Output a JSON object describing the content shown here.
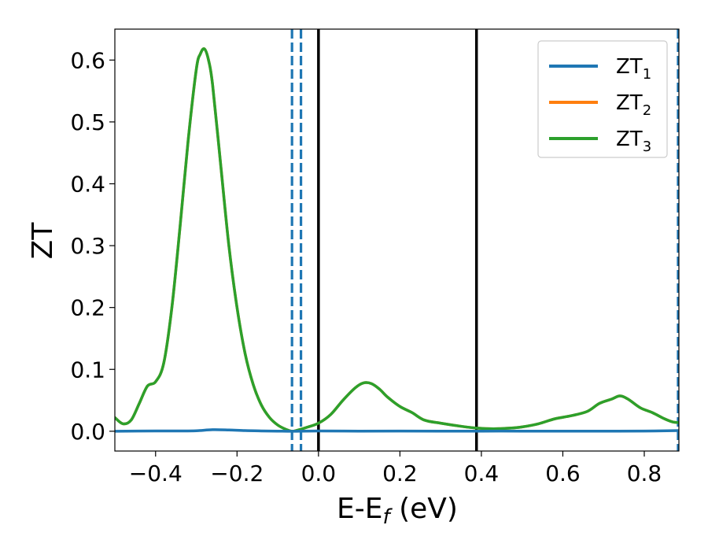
{
  "chart_data": {
    "type": "line",
    "xlabel": "E-E",
    "xlabel_sub": "f",
    "xlabel_unit": "(eV)",
    "ylabel": "ZT",
    "xlim": [
      -0.5,
      0.885
    ],
    "ylim": [
      -0.032,
      0.65
    ],
    "xticks": [
      -0.4,
      -0.2,
      0.0,
      0.2,
      0.4,
      0.6,
      0.8
    ],
    "xtick_labels": [
      "−0.4",
      "−0.2",
      "0.0",
      "0.2",
      "0.4",
      "0.6",
      "0.8"
    ],
    "yticks": [
      0.0,
      0.1,
      0.2,
      0.3,
      0.4,
      0.5,
      0.6
    ],
    "ytick_labels": [
      "0.0",
      "0.1",
      "0.2",
      "0.3",
      "0.4",
      "0.5",
      "0.6"
    ],
    "grid": false,
    "legend_position": "top-right",
    "vlines": [
      {
        "x": -0.065,
        "style": "dashed",
        "color": "#1f77b4"
      },
      {
        "x": -0.043,
        "style": "dashed",
        "color": "#1f77b4"
      },
      {
        "x": 0.0,
        "style": "solid",
        "color": "#000000"
      },
      {
        "x": 0.388,
        "style": "solid",
        "color": "#000000"
      },
      {
        "x": 0.883,
        "style": "dashed",
        "color": "#1f77b4"
      }
    ],
    "series": [
      {
        "name": "ZT",
        "sub": "1",
        "color": "#1f77b4",
        "x": [
          -0.5,
          -0.4,
          -0.34,
          -0.3,
          -0.26,
          -0.22,
          -0.18,
          -0.14,
          -0.1,
          -0.06,
          0.0,
          0.1,
          0.2,
          0.3,
          0.4,
          0.5,
          0.6,
          0.7,
          0.8,
          0.885
        ],
        "y": [
          0.0,
          0.0005,
          0.0005,
          0.0008,
          0.0025,
          0.002,
          0.001,
          0.0005,
          0.0002,
          0.0,
          0.0005,
          0.0002,
          0.0003,
          0.0002,
          0.0002,
          0.0002,
          0.0001,
          0.0001,
          0.0003,
          0.001
        ]
      },
      {
        "name": "ZT",
        "sub": "2",
        "color": "#ff7f0e",
        "x": [
          -0.5,
          -0.48,
          -0.46,
          -0.44,
          -0.42,
          -0.4,
          -0.38,
          -0.36,
          -0.34,
          -0.32,
          -0.3,
          -0.29,
          -0.28,
          -0.27,
          -0.26,
          -0.24,
          -0.22,
          -0.2,
          -0.18,
          -0.16,
          -0.14,
          -0.12,
          -0.1,
          -0.08,
          -0.065,
          -0.05,
          -0.03,
          0.0,
          0.03,
          0.06,
          0.09,
          0.11,
          0.13,
          0.15,
          0.17,
          0.2,
          0.23,
          0.26,
          0.3,
          0.35,
          0.39,
          0.43,
          0.47,
          0.5,
          0.54,
          0.58,
          0.62,
          0.66,
          0.69,
          0.72,
          0.74,
          0.76,
          0.79,
          0.82,
          0.85,
          0.87,
          0.885
        ],
        "y": [
          0.022,
          0.012,
          0.018,
          0.045,
          0.073,
          0.08,
          0.11,
          0.2,
          0.33,
          0.47,
          0.585,
          0.61,
          0.618,
          0.6,
          0.56,
          0.43,
          0.3,
          0.2,
          0.125,
          0.075,
          0.042,
          0.022,
          0.01,
          0.003,
          0.0,
          0.002,
          0.006,
          0.013,
          0.027,
          0.05,
          0.07,
          0.078,
          0.077,
          0.068,
          0.055,
          0.04,
          0.03,
          0.018,
          0.013,
          0.008,
          0.005,
          0.004,
          0.005,
          0.007,
          0.012,
          0.02,
          0.025,
          0.032,
          0.045,
          0.052,
          0.057,
          0.052,
          0.038,
          0.03,
          0.02,
          0.015,
          0.014
        ]
      },
      {
        "name": "ZT",
        "sub": "3",
        "color": "#2ca02c",
        "x": [
          -0.5,
          -0.48,
          -0.46,
          -0.44,
          -0.42,
          -0.4,
          -0.38,
          -0.36,
          -0.34,
          -0.32,
          -0.3,
          -0.29,
          -0.28,
          -0.27,
          -0.26,
          -0.24,
          -0.22,
          -0.2,
          -0.18,
          -0.16,
          -0.14,
          -0.12,
          -0.1,
          -0.08,
          -0.065,
          -0.05,
          -0.03,
          0.0,
          0.03,
          0.06,
          0.09,
          0.11,
          0.13,
          0.15,
          0.17,
          0.2,
          0.23,
          0.26,
          0.3,
          0.35,
          0.39,
          0.43,
          0.47,
          0.5,
          0.54,
          0.58,
          0.62,
          0.66,
          0.69,
          0.72,
          0.74,
          0.76,
          0.79,
          0.82,
          0.85,
          0.87,
          0.885
        ],
        "y": [
          0.022,
          0.012,
          0.018,
          0.045,
          0.073,
          0.08,
          0.11,
          0.2,
          0.33,
          0.47,
          0.585,
          0.61,
          0.618,
          0.6,
          0.56,
          0.43,
          0.3,
          0.2,
          0.125,
          0.075,
          0.042,
          0.022,
          0.01,
          0.003,
          0.0,
          0.002,
          0.006,
          0.013,
          0.027,
          0.05,
          0.07,
          0.078,
          0.077,
          0.068,
          0.055,
          0.04,
          0.03,
          0.018,
          0.013,
          0.008,
          0.005,
          0.004,
          0.005,
          0.007,
          0.012,
          0.02,
          0.025,
          0.032,
          0.045,
          0.052,
          0.057,
          0.052,
          0.038,
          0.03,
          0.02,
          0.015,
          0.014
        ]
      }
    ]
  }
}
